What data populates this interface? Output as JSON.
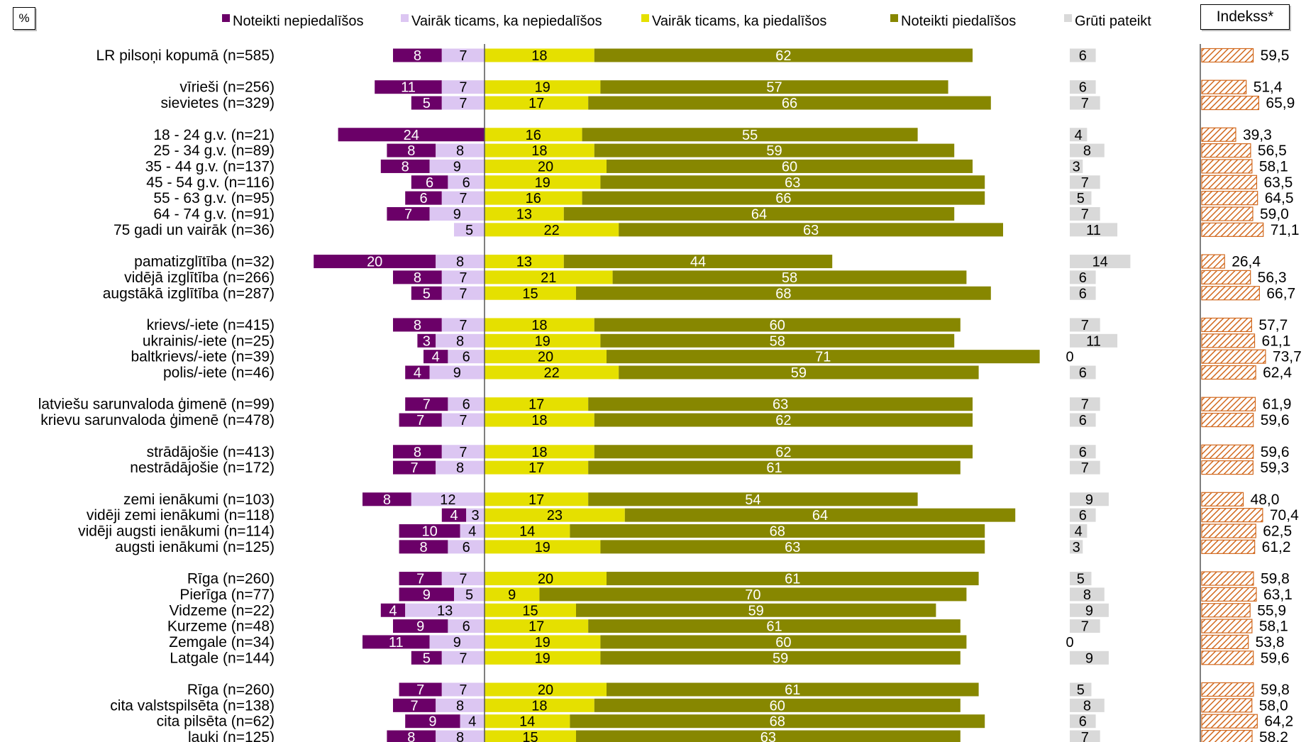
{
  "unit_label": "%",
  "index_label": "Indekss*",
  "colors": {
    "definitely_not": "#6b0068",
    "rather_not": "#dcc6f2",
    "rather_yes": "#e5e000",
    "definitely_yes": "#878700",
    "hard_to_say": "#d9d9d9",
    "index": "#d2691e"
  },
  "chart_data": {
    "type": "bar",
    "orientation": "horizontal-diverging-stacked",
    "legend_position": "top",
    "series": [
      {
        "key": "definitely_not",
        "name": "Noteikti nepiedalīšos"
      },
      {
        "key": "rather_not",
        "name": "Vairāk ticams, ka nepiedalīšos"
      },
      {
        "key": "rather_yes",
        "name": "Vairāk ticams, ka piedalīšos"
      },
      {
        "key": "definitely_yes",
        "name": "Noteikti piedalīšos"
      },
      {
        "key": "hard_to_say",
        "name": "Grūti pateikt"
      }
    ],
    "groups": [
      [
        {
          "label": "LR pilsoņi kopumā (n=585)",
          "values": [
            8,
            7,
            18,
            62,
            6
          ],
          "index": "59,5"
        }
      ],
      [
        {
          "label": "vīrieši (n=256)",
          "values": [
            11,
            7,
            19,
            57,
            6
          ],
          "index": "51,4"
        },
        {
          "label": "sievietes (n=329)",
          "values": [
            5,
            7,
            17,
            66,
            7
          ],
          "index": "65,9"
        }
      ],
      [
        {
          "label": "18 - 24 g.v. (n=21)",
          "values": [
            24,
            null,
            16,
            55,
            4
          ],
          "index": "39,3"
        },
        {
          "label": "25 - 34 g.v. (n=89)",
          "values": [
            8,
            8,
            18,
            59,
            8
          ],
          "index": "56,5"
        },
        {
          "label": "35 - 44 g.v. (n=137)",
          "values": [
            8,
            9,
            20,
            60,
            3
          ],
          "index": "58,1"
        },
        {
          "label": "45 - 54 g.v. (n=116)",
          "values": [
            6,
            6,
            19,
            63,
            7
          ],
          "index": "63,5"
        },
        {
          "label": "55 - 63 g.v. (n=95)",
          "values": [
            6,
            7,
            16,
            66,
            5
          ],
          "index": "64,5"
        },
        {
          "label": "64 - 74 g.v. (n=91)",
          "values": [
            7,
            9,
            13,
            64,
            7
          ],
          "index": "59,0"
        },
        {
          "label": "75 gadi un vairāk (n=36)",
          "values": [
            null,
            5,
            22,
            63,
            11
          ],
          "index": "71,1"
        }
      ],
      [
        {
          "label": "pamatizglītība (n=32)",
          "values": [
            20,
            8,
            13,
            44,
            14
          ],
          "index": "26,4"
        },
        {
          "label": "vidējā izglītība (n=266)",
          "values": [
            8,
            7,
            21,
            58,
            6
          ],
          "index": "56,3"
        },
        {
          "label": "augstākā izglītība (n=287)",
          "values": [
            5,
            7,
            15,
            68,
            6
          ],
          "index": "66,7"
        }
      ],
      [
        {
          "label": "krievs/-iete (n=415)",
          "values": [
            8,
            7,
            18,
            60,
            7
          ],
          "index": "57,7"
        },
        {
          "label": "ukrainis/-iete (n=25)",
          "values": [
            3,
            8,
            19,
            58,
            11
          ],
          "index": "61,1"
        },
        {
          "label": "baltkrievs/-iete (n=39)",
          "values": [
            4,
            6,
            20,
            71,
            0
          ],
          "index": "73,7"
        },
        {
          "label": "polis/-iete (n=46)",
          "values": [
            4,
            9,
            22,
            59,
            6
          ],
          "index": "62,4"
        }
      ],
      [
        {
          "label": "latviešu sarunvaloda ģimenē (n=99)",
          "values": [
            7,
            6,
            17,
            63,
            7
          ],
          "index": "61,9"
        },
        {
          "label": "krievu sarunvaloda ģimenē (n=478)",
          "values": [
            7,
            7,
            18,
            62,
            6
          ],
          "index": "59,6"
        }
      ],
      [
        {
          "label": "strādājošie (n=413)",
          "values": [
            8,
            7,
            18,
            62,
            6
          ],
          "index": "59,6"
        },
        {
          "label": "nestrādājošie (n=172)",
          "values": [
            7,
            8,
            17,
            61,
            7
          ],
          "index": "59,3"
        }
      ],
      [
        {
          "label": "zemi ienākumi (n=103)",
          "values": [
            8,
            12,
            17,
            54,
            9
          ],
          "index": "48,0"
        },
        {
          "label": "vidēji zemi ienākumi (n=118)",
          "values": [
            4,
            3,
            23,
            64,
            6
          ],
          "index": "70,4"
        },
        {
          "label": "vidēji augsti ienākumi (n=114)",
          "values": [
            10,
            4,
            14,
            68,
            4
          ],
          "index": "62,5"
        },
        {
          "label": "augsti ienākumi (n=125)",
          "values": [
            8,
            6,
            19,
            63,
            3
          ],
          "index": "61,2"
        }
      ],
      [
        {
          "label": "Rīga (n=260)",
          "values": [
            7,
            7,
            20,
            61,
            5
          ],
          "index": "59,8"
        },
        {
          "label": "Pierīga (n=77)",
          "values": [
            9,
            5,
            9,
            70,
            8
          ],
          "index": "63,1"
        },
        {
          "label": "Vidzeme (n=22)",
          "values": [
            4,
            13,
            15,
            59,
            9
          ],
          "index": "55,9"
        },
        {
          "label": "Kurzeme (n=48)",
          "values": [
            9,
            6,
            17,
            61,
            7
          ],
          "index": "58,1"
        },
        {
          "label": "Zemgale (n=34)",
          "values": [
            11,
            9,
            19,
            60,
            0
          ],
          "index": "53,8"
        },
        {
          "label": "Latgale (n=144)",
          "values": [
            5,
            7,
            19,
            59,
            9
          ],
          "index": "59,6"
        }
      ],
      [
        {
          "label": "Rīga (n=260)",
          "values": [
            7,
            7,
            20,
            61,
            5
          ],
          "index": "59,8"
        },
        {
          "label": "cita valstspilsēta (n=138)",
          "values": [
            7,
            8,
            18,
            60,
            8
          ],
          "index": "58,0"
        },
        {
          "label": "cita pilsēta (n=62)",
          "values": [
            9,
            4,
            14,
            68,
            6
          ],
          "index": "64,2"
        },
        {
          "label": "lauki (n=125)",
          "values": [
            8,
            8,
            15,
            63,
            7
          ],
          "index": "58,2"
        }
      ]
    ]
  }
}
